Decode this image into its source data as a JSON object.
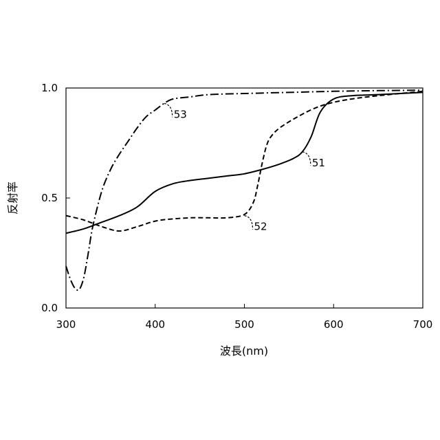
{
  "chart_data": {
    "type": "line",
    "title": "",
    "xlabel": "波長(nm)",
    "ylabel": "反射率",
    "xlim": [
      300,
      700
    ],
    "ylim": [
      0.0,
      1.0
    ],
    "x_ticks": [
      "300",
      "400",
      "500",
      "600",
      "700"
    ],
    "y_ticks": [
      "0.0",
      "0.5",
      "1.0"
    ],
    "grid": false,
    "legend": "none",
    "series": [
      {
        "name": "51",
        "line_style": "solid",
        "x": [
          300,
          320,
          340,
          360,
          380,
          400,
          420,
          440,
          460,
          480,
          500,
          520,
          540,
          555,
          565,
          575,
          585,
          600,
          620,
          650,
          700
        ],
        "y": [
          0.34,
          0.36,
          0.39,
          0.42,
          0.46,
          0.53,
          0.565,
          0.58,
          0.59,
          0.6,
          0.61,
          0.63,
          0.655,
          0.68,
          0.71,
          0.78,
          0.89,
          0.95,
          0.965,
          0.97,
          0.98
        ],
        "callout": {
          "x": 565,
          "y": 0.71
        }
      },
      {
        "name": "52",
        "line_style": "dashed",
        "x": [
          300,
          320,
          340,
          360,
          380,
          400,
          420,
          440,
          460,
          480,
          500,
          510,
          515,
          520,
          525,
          530,
          540,
          560,
          580,
          600,
          620,
          650,
          700
        ],
        "y": [
          0.42,
          0.4,
          0.37,
          0.35,
          0.37,
          0.395,
          0.405,
          0.41,
          0.41,
          0.41,
          0.425,
          0.48,
          0.56,
          0.66,
          0.74,
          0.78,
          0.82,
          0.87,
          0.91,
          0.935,
          0.95,
          0.965,
          0.985
        ],
        "callout": {
          "x": 500,
          "y": 0.42
        }
      },
      {
        "name": "53",
        "line_style": "dash-dot",
        "x": [
          300,
          305,
          310,
          315,
          320,
          325,
          330,
          340,
          350,
          360,
          370,
          380,
          390,
          400,
          410,
          420,
          440,
          460,
          500,
          550,
          600,
          650,
          700
        ],
        "y": [
          0.19,
          0.13,
          0.09,
          0.085,
          0.14,
          0.25,
          0.37,
          0.53,
          0.63,
          0.7,
          0.76,
          0.82,
          0.87,
          0.9,
          0.93,
          0.95,
          0.96,
          0.97,
          0.975,
          0.98,
          0.985,
          0.988,
          0.99
        ],
        "callout": {
          "x": 410,
          "y": 0.93
        }
      }
    ]
  }
}
